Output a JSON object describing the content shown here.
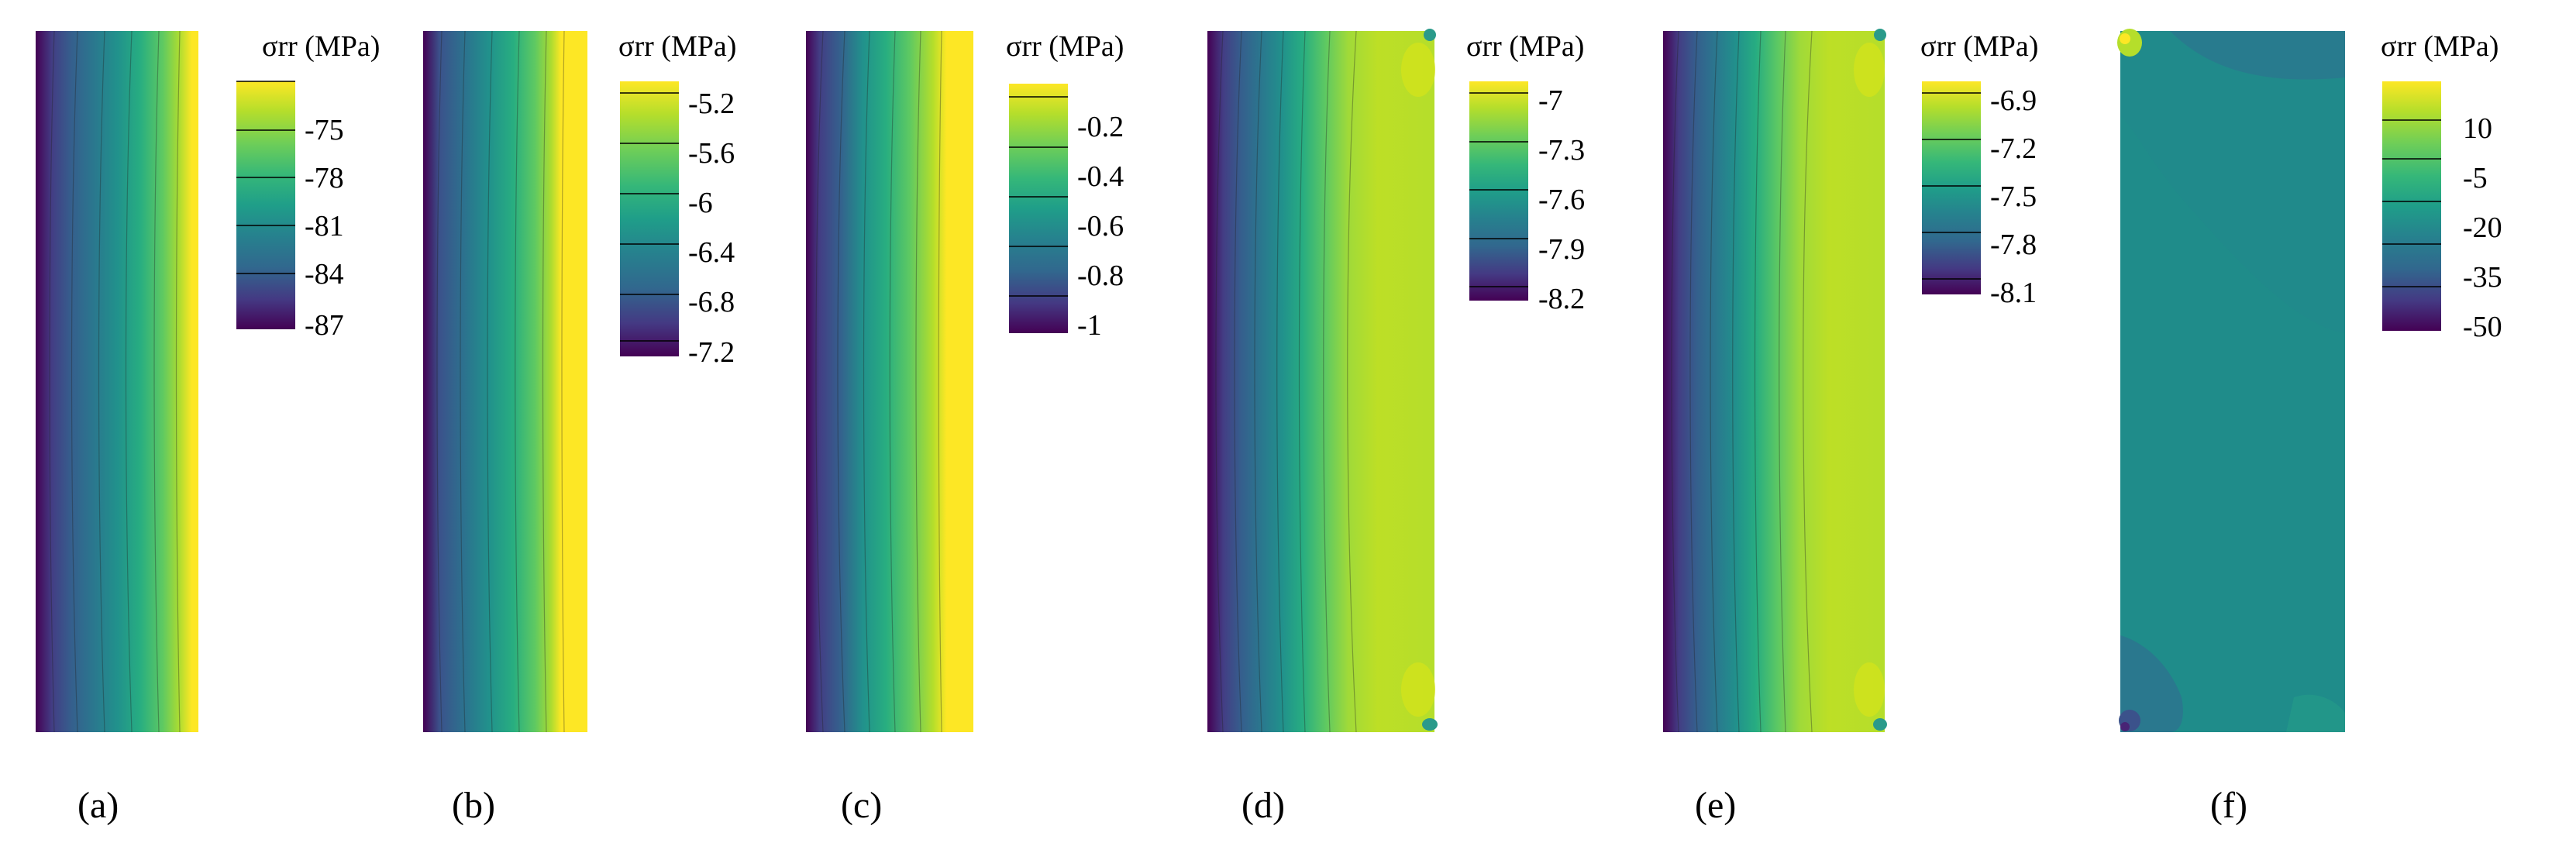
{
  "figure": {
    "panels": [
      {
        "id": "a",
        "caption": "(a)",
        "legend": {
          "title": "σrr (MPa)",
          "ticks": [
            "-75",
            "-78",
            "-81",
            "-84",
            "-87"
          ]
        },
        "field": "edge-gradient-plain"
      },
      {
        "id": "b",
        "caption": "(b)",
        "legend": {
          "title": "σrr (MPa)",
          "ticks": [
            "-5.2",
            "-5.6",
            "-6",
            "-6.4",
            "-6.8",
            "-7.2"
          ]
        },
        "field": "edge-gradient-plain"
      },
      {
        "id": "c",
        "caption": "(c)",
        "legend": {
          "title": "σrr (MPa)",
          "ticks": [
            "-0.2",
            "-0.4",
            "-0.6",
            "-0.8",
            "-1"
          ]
        },
        "field": "edge-gradient-curved"
      },
      {
        "id": "d",
        "caption": "(d)",
        "legend": {
          "title": "σrr (MPa)",
          "ticks": [
            "-7",
            "-7.3",
            "-7.6",
            "-7.9",
            "-8.2"
          ]
        },
        "field": "edge-gradient-wide"
      },
      {
        "id": "e",
        "caption": "(e)",
        "legend": {
          "title": "σrr (MPa)",
          "ticks": [
            "-6.9",
            "-7.2",
            "-7.5",
            "-7.8",
            "-8.1"
          ]
        },
        "field": "edge-gradient-wide"
      },
      {
        "id": "f",
        "caption": "(f)",
        "legend": {
          "title": "σrr (MPa)",
          "ticks": [
            "10",
            "-5",
            "-20",
            "-35",
            "-50"
          ]
        },
        "field": "uniform-teal"
      }
    ],
    "colormap": [
      "#440154",
      "#482475",
      "#414487",
      "#355f8d",
      "#2a788e",
      "#21918c",
      "#22a884",
      "#44bf70",
      "#7ad151",
      "#bddf26",
      "#fde725"
    ]
  }
}
